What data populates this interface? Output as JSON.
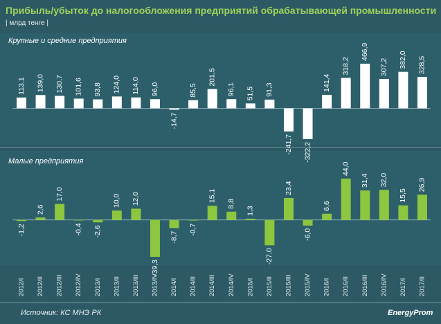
{
  "header": {
    "title": "Прибыль/убыток до налогообложения предприятий обрабатывающей промышленности",
    "subtitle": "| млрд тенге |"
  },
  "chart_data": [
    {
      "type": "bar",
      "title": "Крупные  и средние  предприятия",
      "color": "#ffffff",
      "values": [
        113.1,
        139.0,
        130.7,
        101.6,
        93.8,
        124.0,
        114.0,
        96.0,
        -14.7,
        85.5,
        201.5,
        96.1,
        51.5,
        91.3,
        -241.7,
        -322.2,
        141.4,
        318.2,
        466.9,
        307.2,
        382.0,
        328.5
      ],
      "value_labels": [
        "113,1",
        "139,0",
        "130,7",
        "101,6",
        "93,8",
        "124,0",
        "114,0",
        "96,0",
        "-14,7",
        "85,5",
        "201,5",
        "96,1",
        "51,5",
        "91,3",
        "-241,7",
        "-322,2",
        "141,4",
        "318,2",
        "466,9",
        "307,2",
        "382,0",
        "328,5"
      ]
    },
    {
      "type": "bar",
      "title": "Малые  предприятия",
      "color": "#8dc63f",
      "categories": [
        "2012/I",
        "2012/II",
        "2012/III",
        "2012/IV",
        "2013/I",
        "2013/II",
        "2013/III",
        "2013/IV",
        "2014/I",
        "2014/II",
        "2014/III",
        "2014/IV",
        "2015/I",
        "2015/II",
        "2015/III",
        "2015/IV",
        "2016/I",
        "2016/II",
        "2016/III",
        "2016/IV",
        "2017/I",
        "2017/II"
      ],
      "values": [
        -1.2,
        2.6,
        17.0,
        -0.4,
        -2.6,
        10.0,
        12.0,
        -39.3,
        -8.7,
        -0.7,
        15.1,
        8.8,
        1.3,
        -27.0,
        23.4,
        -6.0,
        6.6,
        44.0,
        31.4,
        32.0,
        15.5,
        26.9
      ],
      "value_labels": [
        "-1,2",
        "2,6",
        "17,0",
        "-0,4",
        "-2,6",
        "10,0",
        "12,0",
        "-39,3",
        "-8,7",
        "-0,7",
        "15,1",
        "8,8",
        "1,3",
        "-27,0",
        "23,4",
        "-6,0",
        "6,6",
        "44,0",
        "31,4",
        "32,0",
        "15,5",
        "26,9"
      ]
    }
  ],
  "footer": {
    "source": "Источник: КС МНЭ РК",
    "logo": "EnergyProm"
  }
}
